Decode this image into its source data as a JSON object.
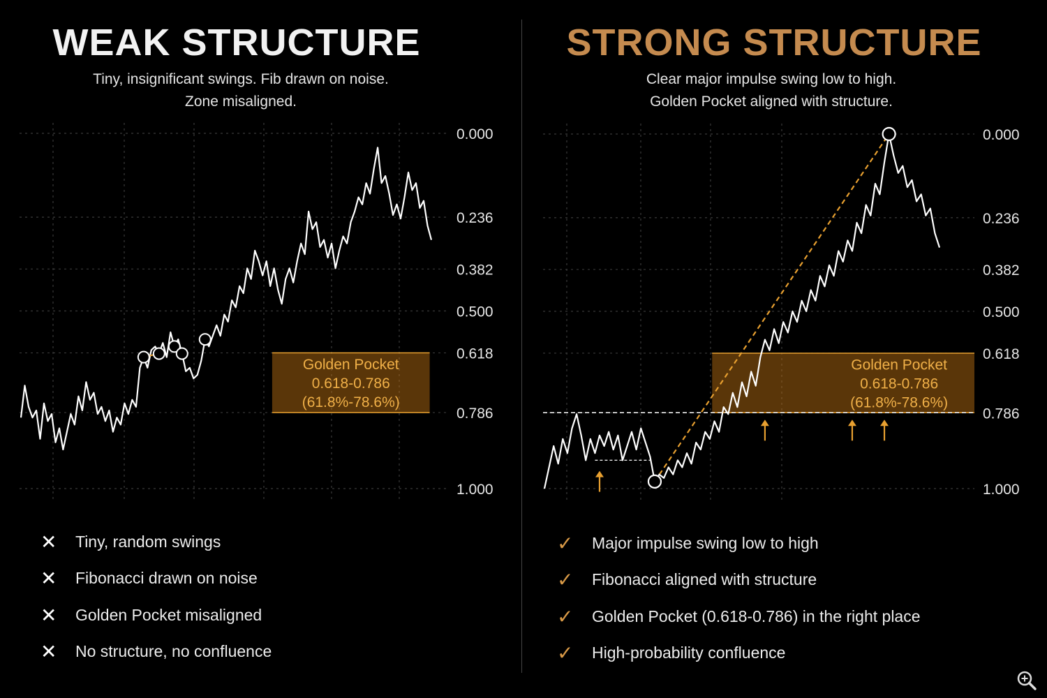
{
  "colors": {
    "accent": "#e8a030",
    "grid": "#3a3a3a",
    "line": "#ffffff",
    "title_strong": "#c58b4f"
  },
  "weak": {
    "title": "WEAK STRUCTURE",
    "subtitle": [
      "Tiny, insignificant swings. Fib drawn on noise.",
      "Zone misaligned."
    ],
    "points": [
      "Tiny, random swings",
      "Fibonacci drawn on noise",
      "Golden Pocket misaligned",
      "No structure, no confluence"
    ],
    "mark_icon": "x-icon",
    "mark_glyph": "✕"
  },
  "strong": {
    "title": "STRONG STRUCTURE",
    "subtitle": [
      "Clear major impulse swing low to high.",
      "Golden Pocket aligned with structure."
    ],
    "points": [
      "Major impulse swing low to high",
      "Fibonacci aligned with structure",
      "Golden Pocket (0.618-0.786) in the right place",
      "High-probability confluence"
    ],
    "mark_icon": "check-icon",
    "mark_glyph": "✓"
  },
  "chart_data": [
    {
      "type": "line",
      "title": "WEAK STRUCTURE",
      "fib_levels": [
        "0.000",
        "0.236",
        "0.382",
        "0.500",
        "0.618",
        "0.786",
        "1.000"
      ],
      "fib_values": [
        0,
        0.236,
        0.382,
        0.5,
        0.618,
        0.786,
        1
      ],
      "zone": {
        "label": [
          "Golden Pocket",
          "0.618-0.786",
          "(61.8%-78.6%)"
        ],
        "from": 0.618,
        "to": 0.786
      },
      "zone_x": [
        0.59,
        0.96
      ],
      "grid": true,
      "series": [
        {
          "y": [
            0.8,
            0.71,
            0.77,
            0.8,
            0.78,
            0.86,
            0.76,
            0.81,
            0.79,
            0.87,
            0.83,
            0.89,
            0.84,
            0.79,
            0.82,
            0.74,
            0.78,
            0.7,
            0.75,
            0.73,
            0.79,
            0.77,
            0.81,
            0.78,
            0.84,
            0.8,
            0.82,
            0.76,
            0.79,
            0.75,
            0.77,
            0.66,
            0.63,
            0.66,
            0.61,
            0.6,
            0.62,
            0.59,
            0.63,
            0.56,
            0.6,
            0.58,
            0.62,
            0.67,
            0.66,
            0.69,
            0.68,
            0.64,
            0.58,
            0.6,
            0.57,
            0.54,
            0.57,
            0.51,
            0.53,
            0.47,
            0.49,
            0.43,
            0.45,
            0.38,
            0.41,
            0.33,
            0.36,
            0.4,
            0.36,
            0.43,
            0.38,
            0.44,
            0.48,
            0.41,
            0.38,
            0.42,
            0.36,
            0.31,
            0.34,
            0.22,
            0.27,
            0.25,
            0.32,
            0.3,
            0.35,
            0.31,
            0.38,
            0.33,
            0.29,
            0.31,
            0.25,
            0.22,
            0.18,
            0.2,
            0.14,
            0.17,
            0.1,
            0.04,
            0.14,
            0.12,
            0.17,
            0.23,
            0.2,
            0.24,
            0.18,
            0.11,
            0.16,
            0.14,
            0.21,
            0.19,
            0.26,
            0.3
          ]
        }
      ],
      "swing_markers": [
        32,
        36,
        40,
        42,
        48
      ],
      "fib_segments": [
        [
          32,
          36
        ],
        [
          40,
          42
        ]
      ]
    },
    {
      "type": "line",
      "title": "STRONG STRUCTURE",
      "fib_levels": [
        "0.000",
        "0.236",
        "0.382",
        "0.500",
        "0.618",
        "0.786",
        "1.000"
      ],
      "fib_values": [
        0,
        0.236,
        0.382,
        0.5,
        0.618,
        0.786,
        1
      ],
      "zone": {
        "label": [
          "Golden Pocket",
          "0.618-0.786",
          "(61.8%-78.6%)"
        ],
        "from": 0.618,
        "to": 0.786
      },
      "zone_x": [
        0.39,
        1.0
      ],
      "support_level": 0.786,
      "grid": true,
      "series": [
        {
          "y": [
            1.0,
            0.94,
            0.88,
            0.93,
            0.86,
            0.9,
            0.83,
            0.79,
            0.85,
            0.92,
            0.86,
            0.9,
            0.85,
            0.88,
            0.84,
            0.89,
            0.85,
            0.92,
            0.88,
            0.84,
            0.89,
            0.83,
            0.87,
            0.91,
            0.98,
            0.96,
            0.97,
            0.94,
            0.96,
            0.92,
            0.94,
            0.9,
            0.93,
            0.87,
            0.89,
            0.84,
            0.86,
            0.81,
            0.84,
            0.77,
            0.79,
            0.73,
            0.77,
            0.7,
            0.74,
            0.67,
            0.71,
            0.63,
            0.58,
            0.61,
            0.55,
            0.59,
            0.53,
            0.56,
            0.5,
            0.53,
            0.47,
            0.5,
            0.44,
            0.47,
            0.4,
            0.43,
            0.37,
            0.4,
            0.33,
            0.36,
            0.3,
            0.33,
            0.25,
            0.28,
            0.2,
            0.23,
            0.14,
            0.17,
            0.08,
            0.0,
            0.06,
            0.11,
            0.09,
            0.15,
            0.13,
            0.19,
            0.17,
            0.23,
            0.21,
            0.28,
            0.32
          ]
        }
      ],
      "swing_low_index": 24,
      "swing_high_index": 75,
      "range_low_index": [
        11,
        23
      ],
      "arrow_indices": [
        12,
        48,
        67,
        74
      ]
    }
  ]
}
